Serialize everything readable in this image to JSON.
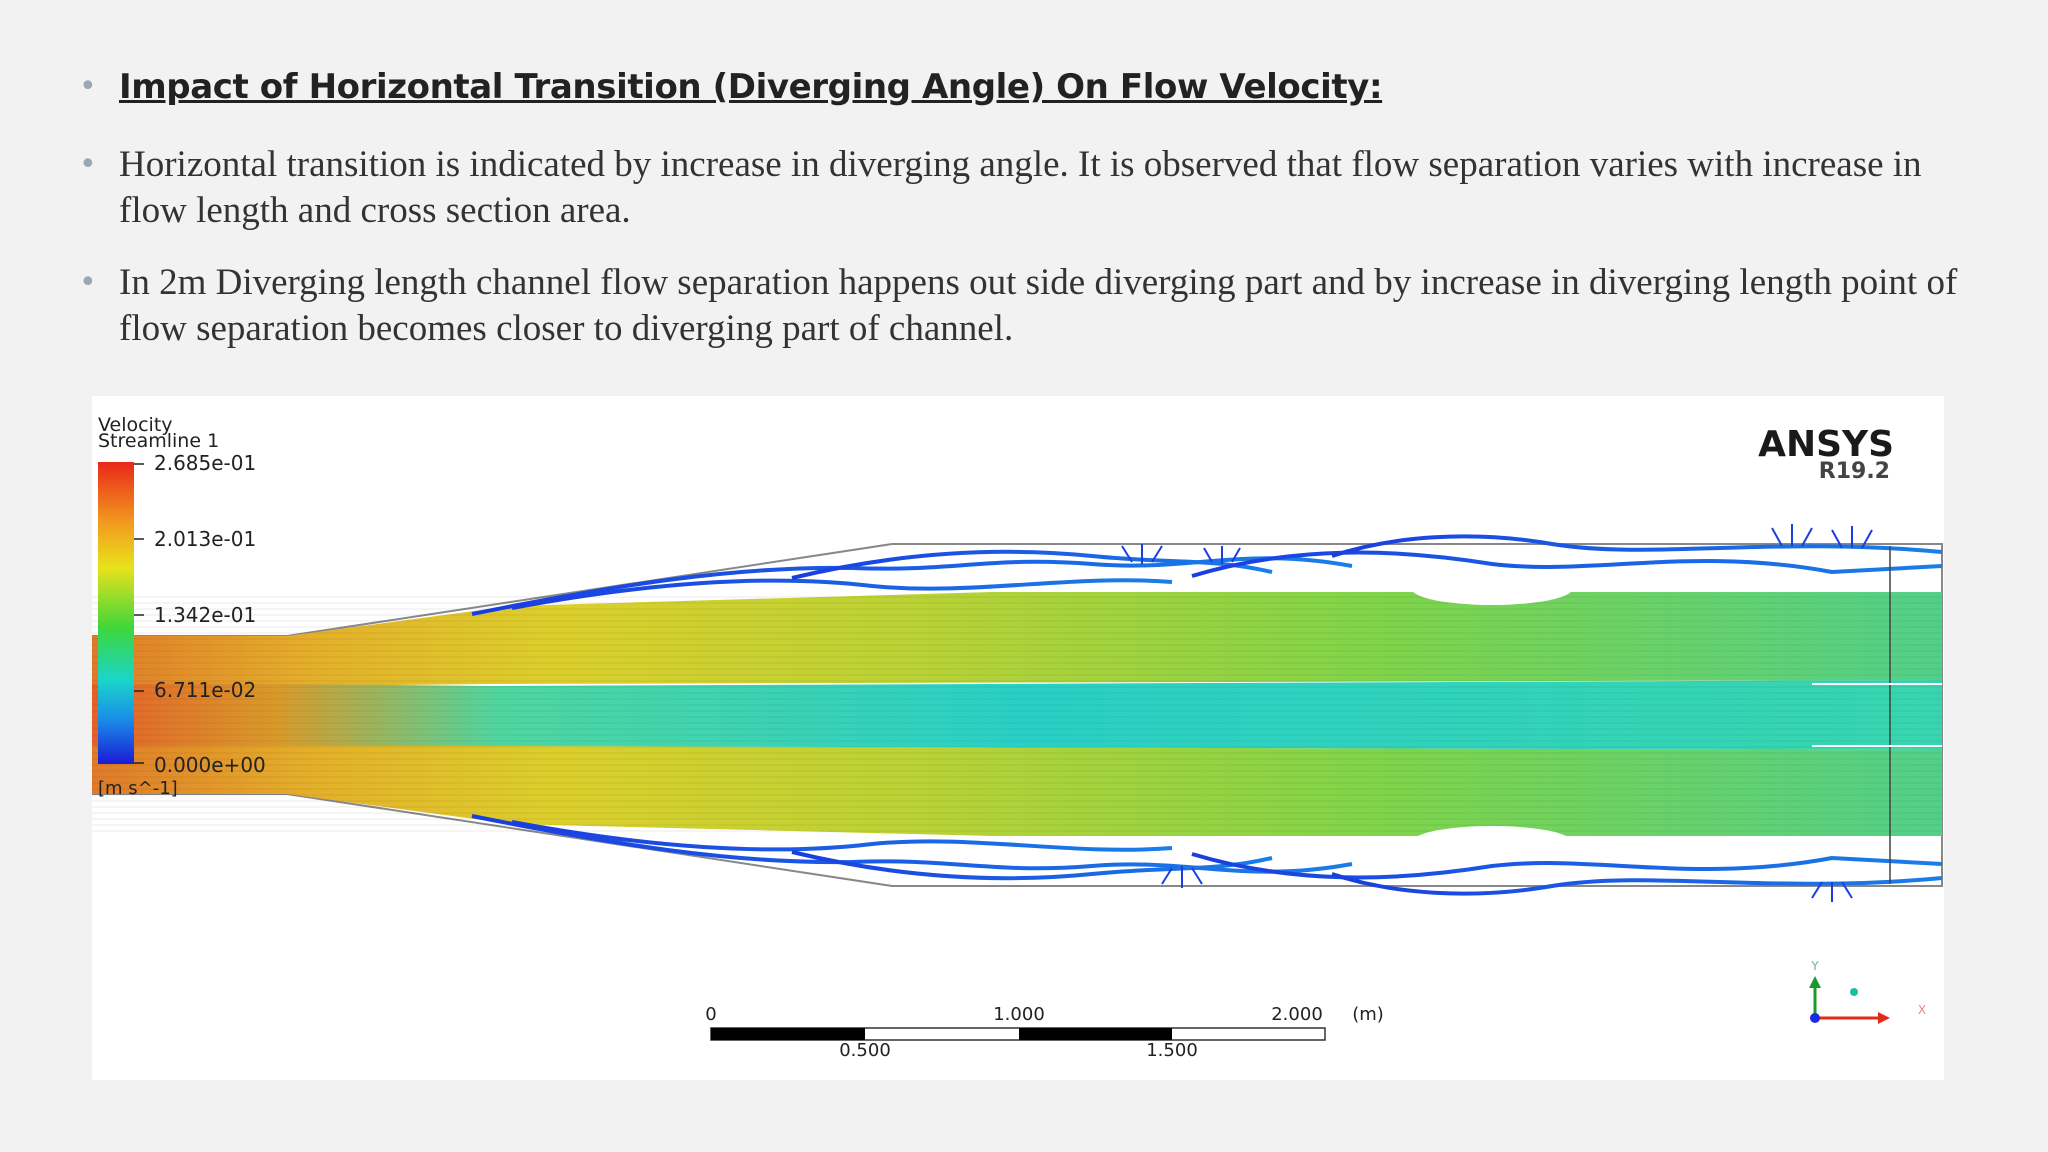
{
  "heading": "Impact of Horizontal Transition (Diverging Angle) On Flow Velocity:",
  "paragraphs": [
    "Horizontal transition is indicated by increase in diverging angle. It is observed that flow separation varies with increase in flow length and cross section area.",
    "In 2m Diverging length channel flow separation happens out side diverging part and by increase in diverging length point of flow separation becomes closer to diverging part of channel."
  ],
  "figure": {
    "legend": {
      "title_line1": "Velocity",
      "title_line2": "Streamline 1",
      "ticks": [
        "2.685e-01",
        "2.013e-01",
        "1.342e-01",
        "6.711e-02",
        "0.000e+00"
      ],
      "unit": "[m s^-1]"
    },
    "logo": {
      "name": "ANSYS",
      "version": "R19.2"
    },
    "scale_bar": {
      "top_labels": [
        "0",
        "1.000",
        "2.000"
      ],
      "bottom_labels": [
        "0.500",
        "1.500"
      ],
      "unit": "(m)"
    },
    "axes": {
      "y": "Y",
      "x": "X"
    }
  }
}
